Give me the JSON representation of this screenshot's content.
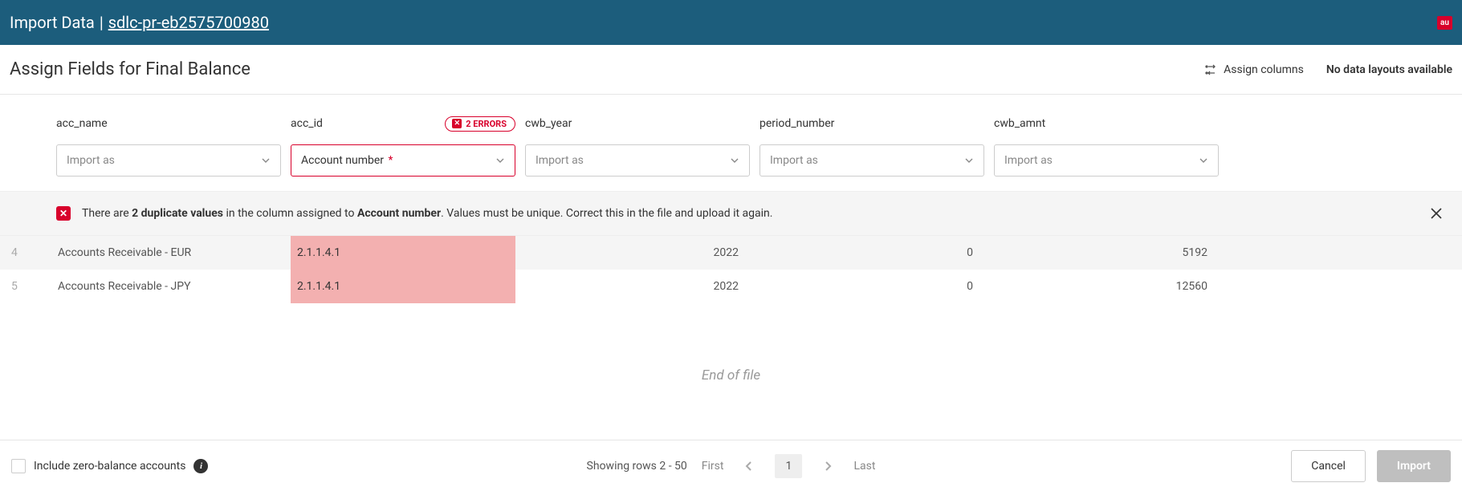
{
  "topbar": {
    "title_prefix": "Import Data",
    "title_link": "sdlc-pr-eb2575700980",
    "badge": "au"
  },
  "subheader": {
    "title": "Assign Fields for Final Balance",
    "assign_columns_label": "Assign columns",
    "no_layouts_label": "No data layouts available"
  },
  "columns": [
    {
      "key": "acc_name",
      "select": "Import as",
      "has_value": false
    },
    {
      "key": "acc_id",
      "select": "Account number",
      "has_value": true,
      "errors": 2,
      "error_label": "2 ERRORS"
    },
    {
      "key": "cwb_year",
      "select": "Import as",
      "has_value": false
    },
    {
      "key": "period_number",
      "select": "Import as",
      "has_value": false
    },
    {
      "key": "cwb_amnt",
      "select": "Import as",
      "has_value": false
    }
  ],
  "alert": {
    "pre": "There are ",
    "bold1": "2 duplicate values",
    "mid": " in the column assigned to ",
    "bold2": "Account number",
    "post": ". Values must be unique. Correct this in the file and upload it again."
  },
  "rows": [
    {
      "num": "4",
      "cells": [
        "Accounts Receivable - EUR",
        "2.1.1.4.1",
        "2022",
        "0",
        "5192"
      ],
      "error_col": 1,
      "striped": true
    },
    {
      "num": "5",
      "cells": [
        "Accounts Receivable - JPY",
        "2.1.1.4.1",
        "2022",
        "0",
        "12560"
      ],
      "error_col": 1,
      "striped": false
    }
  ],
  "eof_text": "End of file",
  "footer": {
    "checkbox_label": "Include zero-balance accounts",
    "showing": "Showing rows 2 - 50",
    "first": "First",
    "last": "Last",
    "page": "1",
    "cancel": "Cancel",
    "import": "Import"
  },
  "colors": {
    "topbar_bg": "#1c5d7c",
    "error": "#d8002b",
    "error_cell": "#f3b0b0",
    "stripe": "#f5f5f5"
  }
}
